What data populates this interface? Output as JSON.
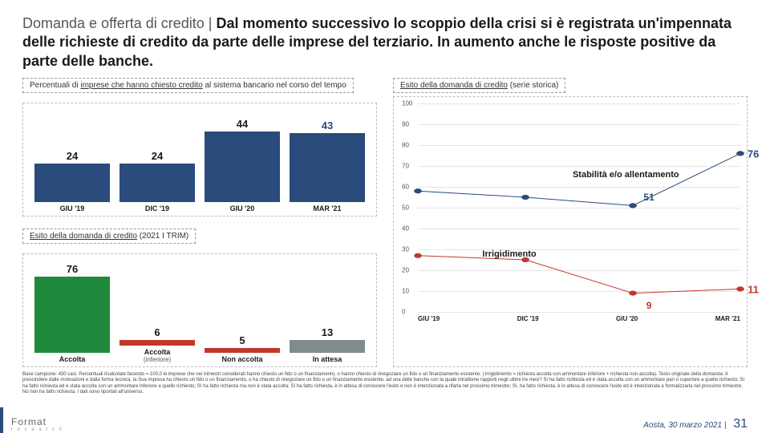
{
  "title": {
    "light": "Domanda e offerta di credito | ",
    "bold": "Dal momento successivo lo scoppio della crisi si è registrata un'impennata delle richieste di credito da parte delle imprese del terziario. In aumento anche le risposte positive da parte delle banche."
  },
  "chart1": {
    "subtitle_pre": "Percentuali di ",
    "subtitle_u": "imprese che hanno chiesto credito",
    "subtitle_post": " al sistema bancario nel corso del tempo",
    "bar_color": "#2a4b7c",
    "highlight_color": "#2a4b7c",
    "bg": "#ffffff",
    "ymax": 50,
    "bars": [
      {
        "label": "GIU '19",
        "value": 24
      },
      {
        "label": "DIC '19",
        "value": 24
      },
      {
        "label": "GIU '20",
        "value": 44
      },
      {
        "label": "MAR '21",
        "value": 43,
        "highlight": true
      }
    ]
  },
  "chart2": {
    "subtitle_u": "Esito della domanda di credito",
    "subtitle_post": " (2021 I TRIM)",
    "colors": [
      "#1f8a3b",
      "#c0392b",
      "#c0392b",
      "#7f8c8d"
    ],
    "ymax": 80,
    "bars": [
      {
        "label": "Accolta",
        "value": 76
      },
      {
        "label": "Accolta",
        "sublabel": "(inferiore)",
        "value": 6
      },
      {
        "label": "Non accolta",
        "value": 5
      },
      {
        "label": "In attesa",
        "value": 13
      }
    ]
  },
  "chart3": {
    "subtitle_u": "Esito della domanda di credito",
    "subtitle_post": " (serie storica)",
    "ymin": 0,
    "ymax": 100,
    "ytick_step": 10,
    "x_labels": [
      "GIU '19",
      "DIC '19",
      "GIU '20",
      "MAR '21"
    ],
    "series": [
      {
        "name": "Stabilità e/o allentamento",
        "color": "#2a4b7c",
        "values": [
          58,
          55,
          51,
          76
        ],
        "last_label": "76",
        "mid_label": "51",
        "label_color": "#2a4b7c"
      },
      {
        "name": "Irrigidimento",
        "color": "#c0392b",
        "values": [
          27,
          25,
          9,
          11
        ],
        "last_label": "11",
        "mid_label": "9",
        "label_color": "#c0392b"
      }
    ]
  },
  "footer": {
    "text": "Base campione: 430 casi. Percentuali ricalcolate facendo = 100,0 le imprese che nei trimestri considerati hanno chiesto un fido o un finanziamento, o hanno chiesto di rinegoziare un fido o un finanziamento esistente. | Irrigidimento = richiesta accolta con ammontare inferiore + richiesta non accolta). Testo originale della domanda: A prescindere dalle motivazioni e dalla forma tecnica, la Sua impresa ha chiesto un fido o un finanziamento, o ha chiesto di rinegoziare un fido o un finanziamento esistente, ad una delle banche con la quale intrattiene rapporti negli ultimi tre mesi? Sì ha fatto richiesta ed è stata accolta con un ammontare pari o superiore a quello richiesto; Sì ha fatto richiesta ed è stata accolta con un ammontare inferiore a quello richiesto; Sì ha fatto richiesta ma non è stata accolta; Sì ha fatto richiesta, è in attesa di conoscere l'esito e non è intenzionata a rifarla nel prossimo trimestre; Sì, ha fatto richiesta, è in attesa di conoscere l'esito ed è intenzionata a formalizzarla nel prossimo trimestre; No non ha fatto richiesta. I dati sono riportati all'universo."
  },
  "page": {
    "logo": "Format",
    "logo_sub": "r e s e a r c h",
    "date": "Aosta, 30 marzo 2021",
    "sep": " | ",
    "num": "31"
  }
}
